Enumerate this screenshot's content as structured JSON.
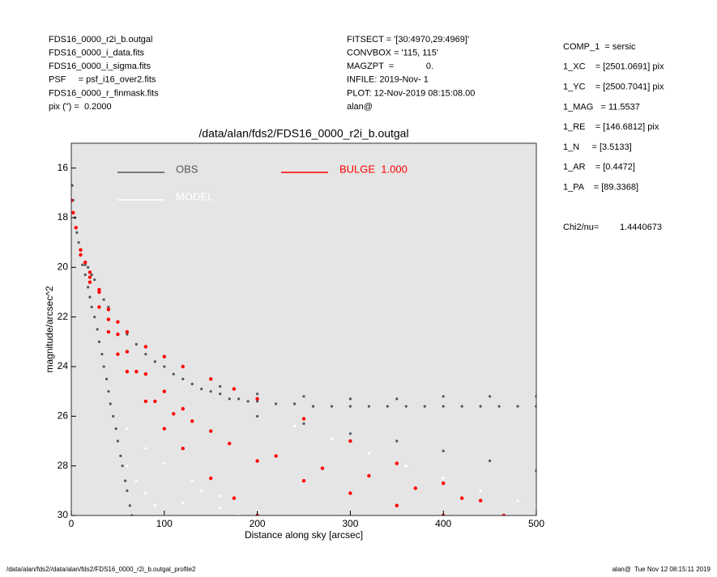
{
  "chart_data": {
    "type": "scatter",
    "title": "/data/alan/fds2/FDS16_0000_r2i_b.outgal",
    "x_label": "Distance along sky [arcsec]",
    "y_label": "magnitude/arcsec^2",
    "header_left": [
      "FDS16_0000_r2i_b.outgal",
      "FDS16_0000_i_data.fits",
      "FDS16_0000_i_sigma.fits",
      "PSF     = psf_i16_over2.fits",
      "FDS16_0000_r_finmask.fits",
      "pix (\") =  0.2000"
    ],
    "header_mid": [
      "FITSECT = '[30:4970,29:4969]'",
      "CONVBOX = '115, 115'",
      "MAGZPT  =             0.",
      "INFILE: 2019-Nov- 1",
      "PLOT: 12-Nov-2019 08:15:08.00",
      "alan@"
    ],
    "header_right": [
      "COMP_1  = sersic",
      "1_XC    = [2501.0691] pix",
      "1_YC    = [2500.7041] pix",
      "1_MAG   = 11.5537",
      "1_RE    = [146.6812] pix",
      "1_N     = [3.5133]",
      "1_AR    = [0.4472]",
      "1_PA    = [89.3368]"
    ],
    "chi_label": "Chi2/nu=",
    "chi_value": "1.4440673",
    "footer_left": "/data/alan/fds2//data/alan/fds2/FDS16_0000_r2i_b.outgal_profile2",
    "footer_right": "alan@  Tue Nov 12 08:15:11 2019",
    "xlim": [
      0,
      500
    ],
    "xticks": [
      0,
      100,
      200,
      300,
      400,
      500
    ],
    "ylim": [
      30,
      15
    ],
    "yticks": [
      16,
      18,
      20,
      22,
      24,
      26,
      28,
      30
    ],
    "background": "#e5e5e5",
    "series": [
      {
        "name": "OBS",
        "color": "#555555",
        "x": [
          1,
          2,
          4,
          6,
          8,
          10,
          12,
          15,
          18,
          20,
          22,
          25,
          28,
          30,
          33,
          35,
          38,
          40,
          42,
          45,
          48,
          50,
          53,
          55,
          58,
          60,
          63,
          65,
          15,
          18,
          22,
          25,
          30,
          35,
          40,
          50,
          60,
          70,
          80,
          90,
          100,
          110,
          120,
          130,
          140,
          150,
          160,
          170,
          180,
          190,
          200,
          220,
          240,
          260,
          280,
          300,
          320,
          340,
          360,
          380,
          400,
          420,
          440,
          460,
          480,
          500,
          160,
          200,
          250,
          300,
          350,
          400,
          450,
          500,
          200,
          250,
          300,
          350,
          400,
          450,
          500
        ],
        "values": [
          16.7,
          17.3,
          18.0,
          18.6,
          19.0,
          19.5,
          19.9,
          20.3,
          20.8,
          21.2,
          21.6,
          22.0,
          22.5,
          23.0,
          23.5,
          24.0,
          24.5,
          25.0,
          25.5,
          26.0,
          26.5,
          27.0,
          27.6,
          28.0,
          28.6,
          29.0,
          29.6,
          30.0,
          19.9,
          20.0,
          20.3,
          20.5,
          20.9,
          21.3,
          21.6,
          22.2,
          22.7,
          23.1,
          23.5,
          23.8,
          24.0,
          24.3,
          24.5,
          24.7,
          24.9,
          25.0,
          25.1,
          25.3,
          25.3,
          25.4,
          25.4,
          25.5,
          25.5,
          25.6,
          25.6,
          25.6,
          25.6,
          25.6,
          25.6,
          25.6,
          25.6,
          25.6,
          25.6,
          25.6,
          25.6,
          25.6,
          24.8,
          25.1,
          25.2,
          25.3,
          25.3,
          25.2,
          25.2,
          25.2,
          26.0,
          26.3,
          26.7,
          27.0,
          27.4,
          27.8,
          28.2
        ]
      },
      {
        "name": "MODEL",
        "color": "#ffffff",
        "x": [
          60,
          70,
          80,
          90,
          100,
          120,
          140,
          160,
          180,
          200,
          60,
          80,
          100,
          130,
          160,
          200,
          240,
          280,
          320,
          360,
          400,
          440,
          480,
          500
        ],
        "values": [
          28.0,
          28.6,
          29.1,
          29.6,
          30.0,
          29.5,
          29.0,
          29.7,
          30.0,
          29.8,
          26.5,
          27.3,
          27.9,
          28.6,
          29.2,
          29.8,
          26.4,
          26.9,
          27.5,
          28.0,
          28.5,
          29.0,
          29.4,
          29.6
        ]
      },
      {
        "name": "BULGE  1.000",
        "color": "#ff0000",
        "x": [
          0,
          2,
          5,
          10,
          15,
          20,
          30,
          40,
          50,
          60,
          80,
          100,
          120,
          150,
          175,
          200,
          250,
          300,
          350,
          400,
          440,
          465,
          10,
          20,
          30,
          40,
          50,
          60,
          80,
          100,
          120,
          150,
          175,
          200,
          20,
          40,
          60,
          80,
          100,
          120,
          150,
          200,
          250,
          300,
          350,
          400,
          30,
          50,
          70,
          90,
          110,
          130,
          170,
          220,
          270,
          320,
          370,
          420
        ],
        "values": [
          17.3,
          17.8,
          18.4,
          19.3,
          19.8,
          20.2,
          21.0,
          21.7,
          22.2,
          22.6,
          23.2,
          23.6,
          24.0,
          24.5,
          24.9,
          25.3,
          26.1,
          27.0,
          27.9,
          28.7,
          29.4,
          30.0,
          19.5,
          20.6,
          21.6,
          22.6,
          23.5,
          24.2,
          25.4,
          26.5,
          27.3,
          28.5,
          29.3,
          30.0,
          20.4,
          22.1,
          23.4,
          24.3,
          25.0,
          25.7,
          26.6,
          27.8,
          28.6,
          29.1,
          29.6,
          30.0,
          20.9,
          22.7,
          24.2,
          25.4,
          25.9,
          26.2,
          27.1,
          27.6,
          28.1,
          28.4,
          28.9,
          29.3
        ]
      }
    ]
  }
}
